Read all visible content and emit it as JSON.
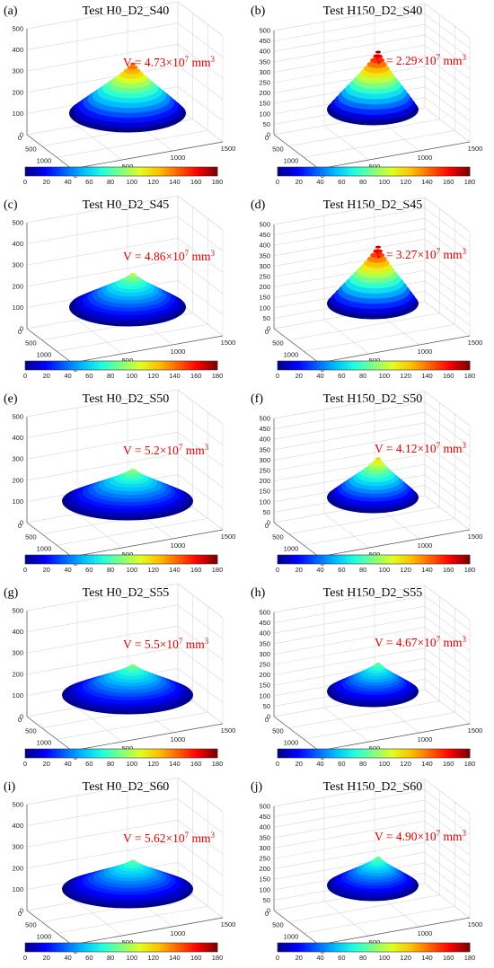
{
  "chart_data": [
    {
      "label": "(a)",
      "title": "Test H0_D2_S40",
      "type": "surface3d",
      "volume_text": "V = 4.73×10",
      "volume_exp": "7",
      "volume_unit": "mm",
      "volume_unit_exp": "3",
      "volume_mm3": 47300000.0,
      "peak_height": 150,
      "colorbar": {
        "min": 0,
        "max": 180,
        "ticks": [
          "0",
          "20",
          "40",
          "60",
          "80",
          "100",
          "120",
          "140",
          "160",
          "180"
        ]
      },
      "z_ticks": [
        "0",
        "100",
        "200",
        "300",
        "400",
        "500"
      ],
      "y_ticks": [
        "0",
        "500",
        "1000",
        "1500"
      ],
      "x_ticks": [
        "0",
        "500",
        "1000",
        "1500"
      ]
    },
    {
      "label": "(b)",
      "title": "Test H150_D2_S40",
      "type": "surface3d",
      "volume_text": "V = 2.29×10",
      "volume_exp": "7",
      "volume_unit": "mm",
      "volume_unit_exp": "3",
      "volume_mm3": 22900000.0,
      "peak_height": 178,
      "colorbar": {
        "min": 0,
        "max": 180,
        "ticks": [
          "0",
          "20",
          "40",
          "60",
          "80",
          "100",
          "120",
          "140",
          "160",
          "180"
        ]
      },
      "z_ticks": [
        "0",
        "50",
        "100",
        "150",
        "200",
        "250",
        "300",
        "350",
        "400",
        "450",
        "500"
      ],
      "y_ticks": [
        "0",
        "500",
        "1000",
        "1500"
      ],
      "x_ticks": [
        "0",
        "500",
        "1000",
        "1500"
      ]
    },
    {
      "label": "(c)",
      "title": "Test H0_D2_S45",
      "type": "surface3d",
      "volume_text": "V = 4.86×10",
      "volume_exp": "7",
      "volume_unit": "mm",
      "volume_unit_exp": "3",
      "volume_mm3": 48600000.0,
      "peak_height": 100,
      "colorbar": {
        "min": 0,
        "max": 180,
        "ticks": [
          "0",
          "20",
          "40",
          "60",
          "80",
          "100",
          "120",
          "140",
          "160",
          "180"
        ]
      },
      "z_ticks": [
        "0",
        "100",
        "200",
        "300",
        "400",
        "500"
      ],
      "y_ticks": [
        "0",
        "500",
        "1000",
        "1500"
      ],
      "x_ticks": [
        "0",
        "500",
        "1000",
        "1500"
      ]
    },
    {
      "label": "(d)",
      "title": "Test H150_D2_S45",
      "type": "surface3d",
      "volume_text": "V = 3.27×10",
      "volume_exp": "7",
      "volume_unit": "mm",
      "volume_unit_exp": "3",
      "volume_mm3": 32700000.0,
      "peak_height": 175,
      "colorbar": {
        "min": 0,
        "max": 180,
        "ticks": [
          "0",
          "20",
          "40",
          "60",
          "80",
          "100",
          "120",
          "140",
          "160",
          "180"
        ]
      },
      "z_ticks": [
        "0",
        "50",
        "100",
        "150",
        "200",
        "250",
        "300",
        "350",
        "400",
        "450",
        "500"
      ],
      "y_ticks": [
        "0",
        "500",
        "1000",
        "1500"
      ],
      "x_ticks": [
        "0",
        "500",
        "1000",
        "1500"
      ]
    },
    {
      "label": "(e)",
      "title": "Test H0_D2_S50",
      "type": "surface3d",
      "volume_text": "V = 5.2×10",
      "volume_exp": "7",
      "volume_unit": "mm",
      "volume_unit_exp": "3",
      "volume_mm3": 52000000.0,
      "peak_height": 95,
      "colorbar": {
        "min": 0,
        "max": 180,
        "ticks": [
          "0",
          "20",
          "40",
          "60",
          "80",
          "100",
          "120",
          "140",
          "160",
          "180"
        ]
      },
      "z_ticks": [
        "0",
        "100",
        "200",
        "300",
        "400",
        "500"
      ],
      "y_ticks": [
        "0",
        "500",
        "1000",
        "1500"
      ],
      "x_ticks": [
        "0",
        "500",
        "1000",
        "1500"
      ]
    },
    {
      "label": "(f)",
      "title": "Test H150_D2_S50",
      "type": "surface3d",
      "volume_text": "V = 4.12×10",
      "volume_exp": "7",
      "volume_unit": "mm",
      "volume_unit_exp": "3",
      "volume_mm3": 41200000.0,
      "peak_height": 120,
      "colorbar": {
        "min": 0,
        "max": 180,
        "ticks": [
          "0",
          "20",
          "40",
          "60",
          "80",
          "100",
          "120",
          "140",
          "160",
          "180"
        ]
      },
      "z_ticks": [
        "0",
        "50",
        "100",
        "150",
        "200",
        "250",
        "300",
        "350",
        "400",
        "450",
        "500"
      ],
      "y_ticks": [
        "0",
        "500",
        "1000",
        "1500"
      ],
      "x_ticks": [
        "0",
        "500",
        "1000",
        "1500"
      ]
    },
    {
      "label": "(g)",
      "title": "Test H0_D2_S55",
      "type": "surface3d",
      "volume_text": "V = 5.5×10",
      "volume_exp": "7",
      "volume_unit": "mm",
      "volume_unit_exp": "3",
      "volume_mm3": 55000000.0,
      "peak_height": 90,
      "colorbar": {
        "min": 0,
        "max": 180,
        "ticks": [
          "0",
          "20",
          "40",
          "60",
          "80",
          "100",
          "120",
          "140",
          "160",
          "180"
        ]
      },
      "z_ticks": [
        "0",
        "100",
        "200",
        "300",
        "400",
        "500"
      ],
      "y_ticks": [
        "0",
        "500",
        "1000",
        "1500"
      ],
      "x_ticks": [
        "0",
        "500",
        "1000",
        "1500"
      ]
    },
    {
      "label": "(h)",
      "title": "Test H150_D2_S55",
      "type": "surface3d",
      "volume_text": "V = 4.67×10",
      "volume_exp": "7",
      "volume_unit": "mm",
      "volume_unit_exp": "3",
      "volume_mm3": 46700000.0,
      "peak_height": 85,
      "colorbar": {
        "min": 0,
        "max": 180,
        "ticks": [
          "0",
          "20",
          "40",
          "60",
          "80",
          "100",
          "120",
          "140",
          "160",
          "180"
        ]
      },
      "z_ticks": [
        "0",
        "50",
        "100",
        "150",
        "200",
        "250",
        "300",
        "350",
        "400",
        "450",
        "500"
      ],
      "y_ticks": [
        "0",
        "500",
        "1000",
        "1500"
      ],
      "x_ticks": [
        "0",
        "500",
        "1000",
        "1500"
      ]
    },
    {
      "label": "(i)",
      "title": "Test H0_D2_S60",
      "type": "surface3d",
      "volume_text": "V = 5.62×10",
      "volume_exp": "7",
      "volume_unit": "mm",
      "volume_unit_exp": "3",
      "volume_mm3": 56200000.0,
      "peak_height": 85,
      "colorbar": {
        "min": 0,
        "max": 180,
        "ticks": [
          "0",
          "20",
          "40",
          "60",
          "80",
          "100",
          "120",
          "140",
          "160",
          "180"
        ]
      },
      "z_ticks": [
        "0",
        "100",
        "200",
        "300",
        "400",
        "500"
      ],
      "y_ticks": [
        "0",
        "500",
        "1000",
        "1500"
      ],
      "x_ticks": [
        "0",
        "500",
        "1000",
        "1500"
      ]
    },
    {
      "label": "(j)",
      "title": "Test H150_D2_S60",
      "type": "surface3d",
      "volume_text": "V = 4.90×10",
      "volume_exp": "7",
      "volume_unit": "mm",
      "volume_unit_exp": "3",
      "volume_mm3": 49000000.0,
      "peak_height": 85,
      "colorbar": {
        "min": 0,
        "max": 180,
        "ticks": [
          "0",
          "20",
          "40",
          "60",
          "80",
          "100",
          "120",
          "140",
          "160",
          "180"
        ]
      },
      "z_ticks": [
        "0",
        "50",
        "100",
        "150",
        "200",
        "250",
        "300",
        "350",
        "400",
        "450",
        "500"
      ],
      "y_ticks": [
        "0",
        "500",
        "1000",
        "1500"
      ],
      "x_ticks": [
        "0",
        "500",
        "1000",
        "1500"
      ]
    }
  ],
  "colormap": [
    "#00008f",
    "#0000ff",
    "#0060ff",
    "#00bfff",
    "#20ffdf",
    "#80ff80",
    "#dfff20",
    "#ffbf00",
    "#ff6000",
    "#ff0000",
    "#800000"
  ]
}
